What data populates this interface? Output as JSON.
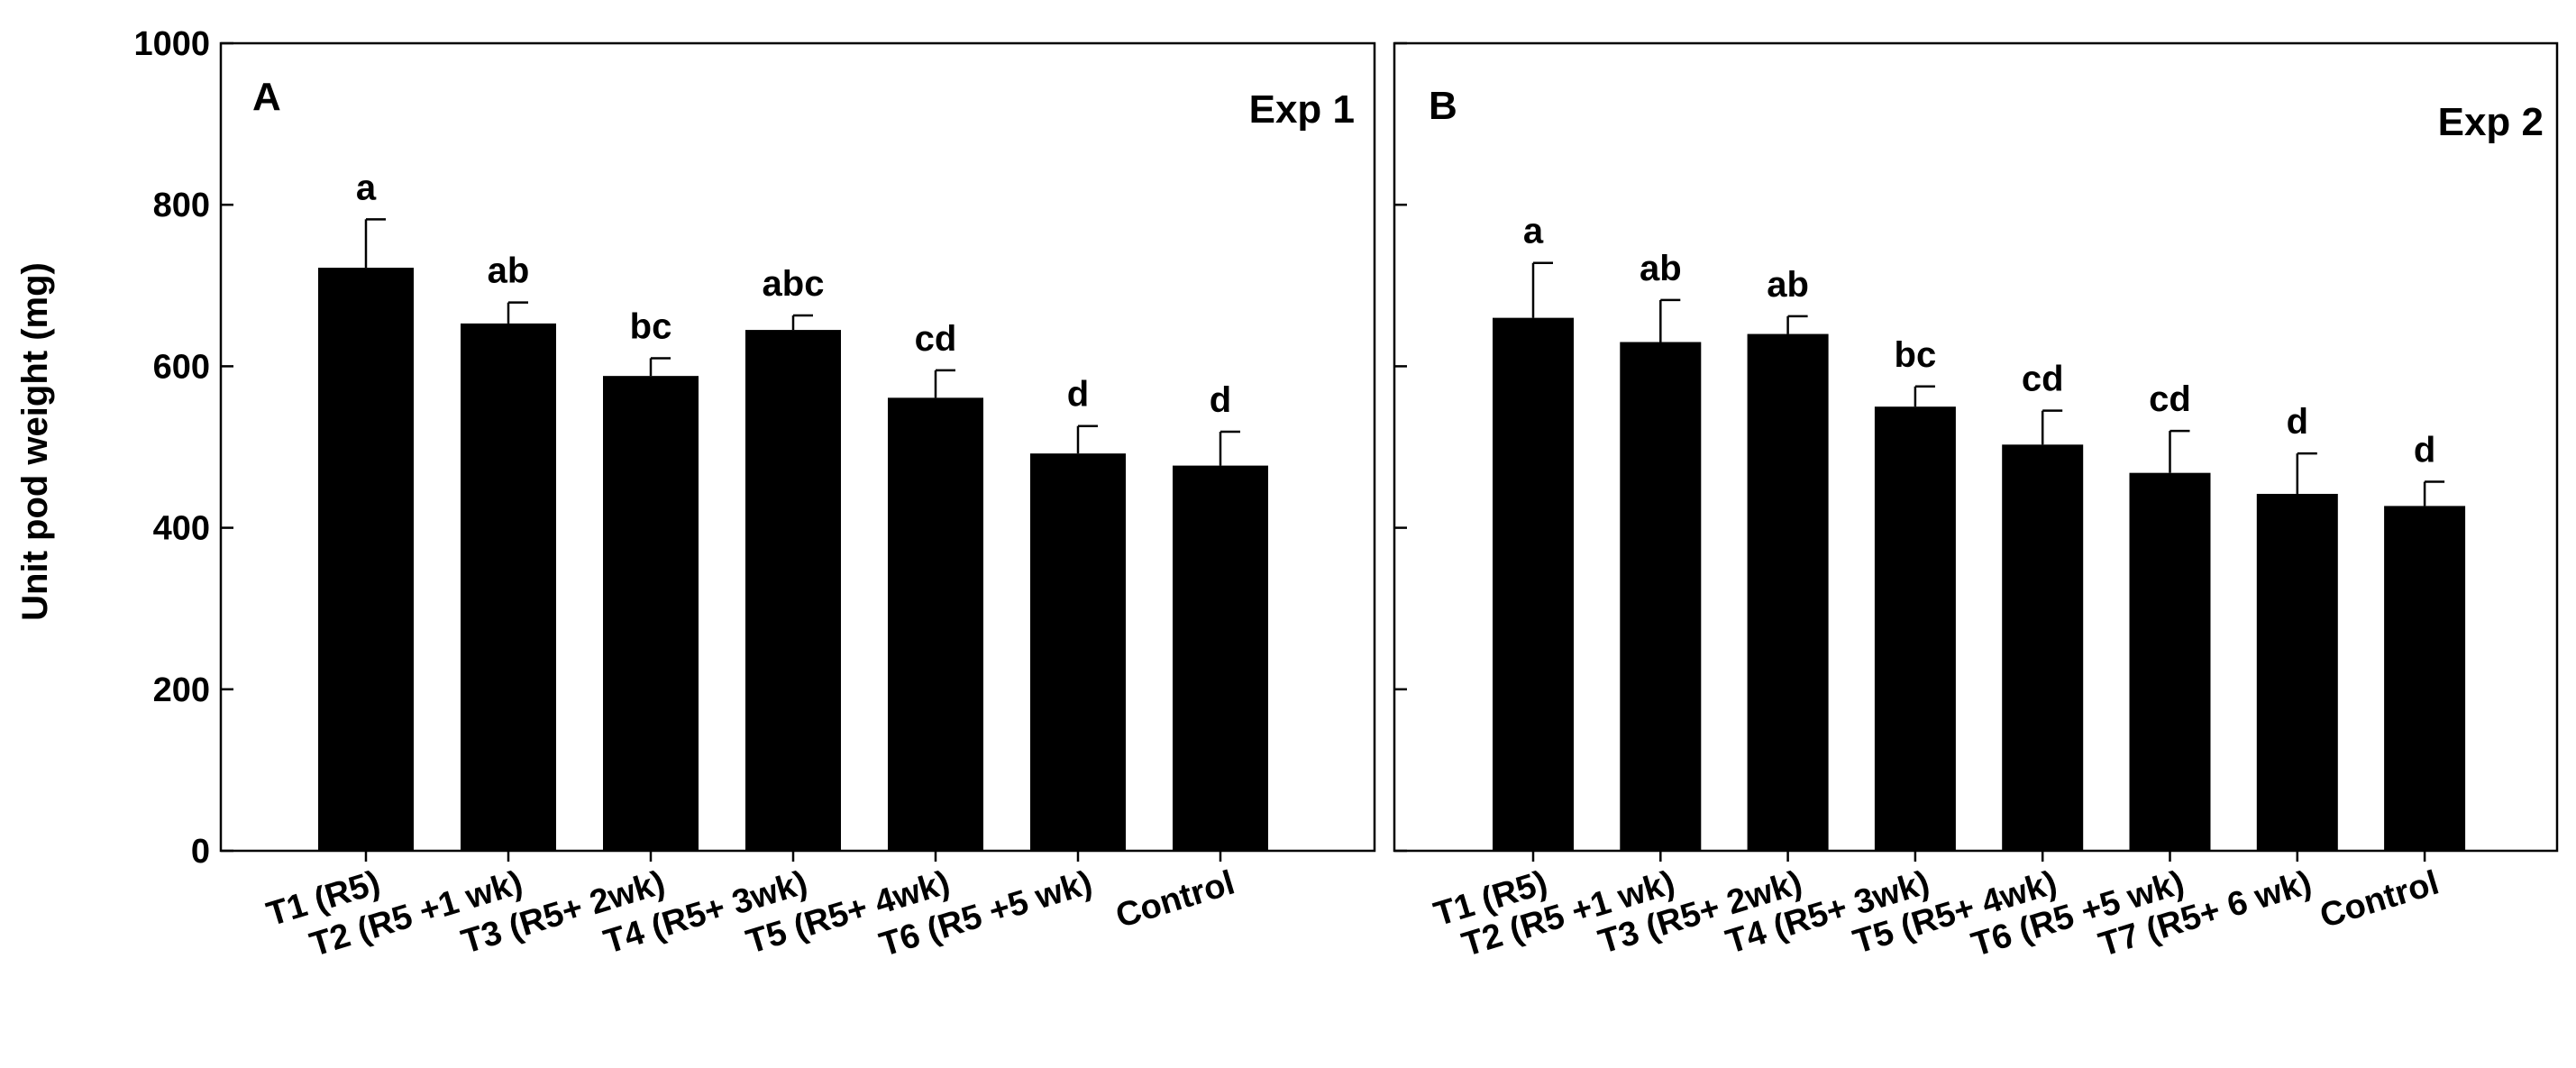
{
  "chart_data": {
    "type": "bar",
    "ylabel": "Unit pod weight (mg)",
    "ylim": [
      0,
      1000
    ],
    "yticks": [
      0,
      200,
      400,
      600,
      800,
      1000
    ],
    "grid": false,
    "bar_color": "#000000",
    "panels": [
      {
        "letter": "A",
        "title": "Exp 1",
        "categories": [
          "T1 (R5)",
          "T2 (R5 +1 wk)",
          "T3 (R5+ 2wk)",
          "T4 (R5+ 3wk)",
          "T5 (R5+ 4wk)",
          "T6 (R5 +5 wk)",
          "Control"
        ],
        "values": [
          722,
          653,
          588,
          645,
          561,
          492,
          477
        ],
        "errors": [
          60,
          26,
          22,
          18,
          34,
          34,
          42
        ],
        "significance": [
          "a",
          "ab",
          "bc",
          "abc",
          "cd",
          "d",
          "d"
        ]
      },
      {
        "letter": "B",
        "title": "Exp 2",
        "categories": [
          "T1 (R5)",
          "T2 (R5 +1 wk)",
          "T3 (R5+ 2wk)",
          "T4 (R5+ 3wk)",
          "T5 (R5+ 4wk)",
          "T6 (R5 +5 wk)",
          "T7 (R5+ 6 wk)",
          "Control"
        ],
        "values": [
          660,
          630,
          640,
          550,
          503,
          468,
          442,
          427
        ],
        "errors": [
          68,
          52,
          22,
          25,
          42,
          52,
          50,
          30
        ],
        "significance": [
          "a",
          "ab",
          "ab",
          "bc",
          "cd",
          "cd",
          "d",
          "d"
        ]
      }
    ]
  }
}
